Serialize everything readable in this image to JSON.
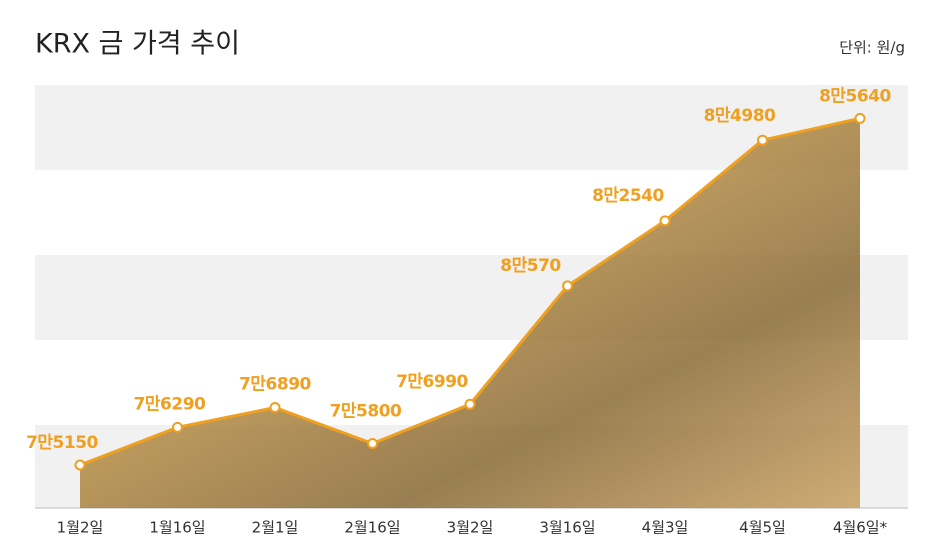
{
  "chart_data": {
    "type": "line",
    "title": "KRX 금 가격 추이",
    "unit_label": "단위: 원/g",
    "categories": [
      "1월2일",
      "1월16일",
      "2월1일",
      "2월16일",
      "3월2일",
      "3월16일",
      "4월3일",
      "4월5일",
      "4월6일*"
    ],
    "series": [
      {
        "color": "#f0a020",
        "values": [
          75150,
          76290,
          76890,
          75800,
          76990,
          80570,
          82540,
          84980,
          85640
        ],
        "value_labels": [
          "7만5150",
          "7만6290",
          "7만6890",
          "7만5800",
          "7만6990",
          "8만570",
          "8만2540",
          "8만4980",
          "8만5640"
        ]
      }
    ],
    "ylim": [
      73850,
      86650
    ]
  }
}
